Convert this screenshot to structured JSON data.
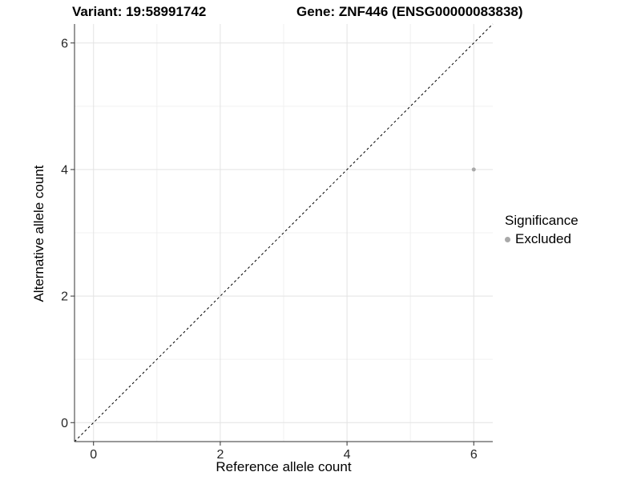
{
  "titles": {
    "left": "Variant: 19:58991742",
    "right": "Gene: ZNF446 (ENSG00000083838)"
  },
  "chart_data": {
    "type": "scatter",
    "title": "Variant: 19:58991742 — Gene: ZNF446 (ENSG00000083838)",
    "xlabel": "Reference allele count",
    "ylabel": "Alternative allele count",
    "x_range": [
      -0.3,
      6.3
    ],
    "y_range": [
      -0.3,
      6.3
    ],
    "x_ticks": [
      0,
      2,
      4,
      6
    ],
    "y_ticks": [
      0,
      2,
      4,
      6
    ],
    "x_minor_ticks": [
      1,
      3,
      5
    ],
    "y_minor_ticks": [
      1,
      3,
      5
    ],
    "grid": true,
    "identity_line": {
      "equation": "y = x",
      "style": "dashed",
      "color": "#000000"
    },
    "points": [
      {
        "x": 6,
        "y": 4,
        "series": "Excluded"
      }
    ],
    "series": [
      {
        "name": "Excluded",
        "color": "#a9a9a9"
      }
    ],
    "legend": {
      "position": "right",
      "title": "Significance",
      "items": [
        {
          "label": "Excluded",
          "color": "#a9a9a9"
        }
      ]
    },
    "colors": {
      "point": "#a9a9a9",
      "grid_major": "#e3e3e3",
      "grid_minor": "#f0f0f0",
      "axis_line": "#333333",
      "tick_label": "#262626",
      "background": "#ffffff"
    }
  }
}
